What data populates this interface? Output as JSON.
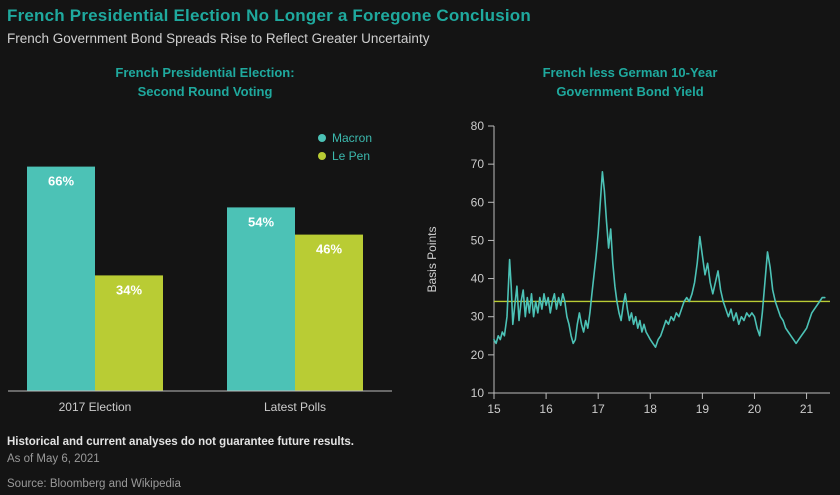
{
  "header": {
    "title": "French Presidential Election No Longer a Foregone Conclusion",
    "subtitle": "French Government Bond Spreads Rise to Reflect Greater Uncertainty"
  },
  "footer": {
    "disclaimer": "Historical and current analyses do not guarantee future results.",
    "as_of": "As of May 6, 2021",
    "source": "Source: Bloomberg and Wikipedia"
  },
  "colors": {
    "background": "#141414",
    "title_teal": "#1fa99e",
    "teal": "#4cc2b6",
    "green": "#b9cc34",
    "axis_line": "#bdbdbd",
    "text_muted": "#cccccc",
    "value_label": "#ffffff"
  },
  "chart_data": [
    {
      "type": "bar",
      "title_lines": [
        "French Presidential Election:",
        "Second Round Voting"
      ],
      "categories": [
        "2017 Election",
        "Latest Polls"
      ],
      "series": [
        {
          "name": "Macron",
          "color_key": "teal",
          "values": [
            66,
            54
          ]
        },
        {
          "name": "Le Pen",
          "color_key": "green",
          "values": [
            34,
            46
          ]
        }
      ],
      "value_labels": [
        [
          "66%",
          "34%"
        ],
        [
          "54%",
          "46%"
        ]
      ],
      "ylim": [
        0,
        100
      ],
      "legend_position": "upper-right",
      "grid": false
    },
    {
      "type": "line",
      "title_lines": [
        "French less German 10-Year",
        "Government Bond Yield"
      ],
      "ylabel": "Basis Points",
      "ylim": [
        10,
        80
      ],
      "yticks": [
        10,
        20,
        30,
        40,
        50,
        60,
        70,
        80
      ],
      "xlim": [
        15,
        21.45
      ],
      "xticks": [
        15,
        16,
        17,
        18,
        19,
        20,
        21
      ],
      "grid": false,
      "reference_line": {
        "value": 34,
        "color_key": "green",
        "meaning": "current spread level"
      },
      "series": [
        {
          "name": "French less German 10-Year Government Bond Yield",
          "color_key": "teal",
          "points": [
            [
              15.0,
              24
            ],
            [
              15.04,
              23
            ],
            [
              15.08,
              25
            ],
            [
              15.12,
              24
            ],
            [
              15.16,
              26
            ],
            [
              15.2,
              25
            ],
            [
              15.25,
              30
            ],
            [
              15.3,
              45
            ],
            [
              15.33,
              38
            ],
            [
              15.36,
              28
            ],
            [
              15.4,
              33
            ],
            [
              15.44,
              38
            ],
            [
              15.48,
              29
            ],
            [
              15.52,
              34
            ],
            [
              15.56,
              37
            ],
            [
              15.6,
              30
            ],
            [
              15.64,
              35
            ],
            [
              15.68,
              31
            ],
            [
              15.72,
              36
            ],
            [
              15.76,
              30
            ],
            [
              15.8,
              34
            ],
            [
              15.84,
              31
            ],
            [
              15.88,
              35
            ],
            [
              15.92,
              32
            ],
            [
              15.96,
              36
            ],
            [
              16.0,
              33
            ],
            [
              16.04,
              35
            ],
            [
              16.08,
              31
            ],
            [
              16.12,
              34
            ],
            [
              16.16,
              36
            ],
            [
              16.2,
              32
            ],
            [
              16.24,
              35
            ],
            [
              16.28,
              33
            ],
            [
              16.32,
              36
            ],
            [
              16.36,
              34
            ],
            [
              16.4,
              30
            ],
            [
              16.44,
              28
            ],
            [
              16.48,
              25
            ],
            [
              16.52,
              23
            ],
            [
              16.56,
              24
            ],
            [
              16.6,
              28
            ],
            [
              16.64,
              31
            ],
            [
              16.68,
              28
            ],
            [
              16.72,
              26
            ],
            [
              16.76,
              29
            ],
            [
              16.8,
              27
            ],
            [
              16.84,
              31
            ],
            [
              16.88,
              36
            ],
            [
              16.92,
              41
            ],
            [
              16.96,
              46
            ],
            [
              17.0,
              52
            ],
            [
              17.04,
              60
            ],
            [
              17.08,
              68
            ],
            [
              17.12,
              63
            ],
            [
              17.16,
              55
            ],
            [
              17.2,
              48
            ],
            [
              17.24,
              53
            ],
            [
              17.28,
              44
            ],
            [
              17.32,
              38
            ],
            [
              17.36,
              34
            ],
            [
              17.4,
              31
            ],
            [
              17.44,
              29
            ],
            [
              17.48,
              33
            ],
            [
              17.52,
              36
            ],
            [
              17.56,
              32
            ],
            [
              17.6,
              29
            ],
            [
              17.64,
              31
            ],
            [
              17.68,
              28
            ],
            [
              17.72,
              30
            ],
            [
              17.76,
              27
            ],
            [
              17.8,
              29
            ],
            [
              17.84,
              26
            ],
            [
              17.88,
              28
            ],
            [
              17.92,
              26
            ],
            [
              17.96,
              25
            ],
            [
              18.0,
              24
            ],
            [
              18.05,
              23
            ],
            [
              18.1,
              22
            ],
            [
              18.15,
              24
            ],
            [
              18.2,
              25
            ],
            [
              18.25,
              27
            ],
            [
              18.3,
              29
            ],
            [
              18.35,
              28
            ],
            [
              18.4,
              30
            ],
            [
              18.45,
              29
            ],
            [
              18.5,
              31
            ],
            [
              18.55,
              30
            ],
            [
              18.6,
              32
            ],
            [
              18.65,
              34
            ],
            [
              18.7,
              35
            ],
            [
              18.75,
              34
            ],
            [
              18.8,
              36
            ],
            [
              18.85,
              39
            ],
            [
              18.9,
              44
            ],
            [
              18.95,
              51
            ],
            [
              19.0,
              46
            ],
            [
              19.05,
              41
            ],
            [
              19.1,
              44
            ],
            [
              19.15,
              39
            ],
            [
              19.2,
              36
            ],
            [
              19.25,
              39
            ],
            [
              19.3,
              42
            ],
            [
              19.35,
              37
            ],
            [
              19.4,
              34
            ],
            [
              19.45,
              32
            ],
            [
              19.5,
              30
            ],
            [
              19.55,
              32
            ],
            [
              19.6,
              29
            ],
            [
              19.65,
              31
            ],
            [
              19.7,
              28
            ],
            [
              19.75,
              30
            ],
            [
              19.8,
              29
            ],
            [
              19.85,
              31
            ],
            [
              19.9,
              30
            ],
            [
              19.95,
              31
            ],
            [
              20.0,
              30
            ],
            [
              20.05,
              27
            ],
            [
              20.1,
              25
            ],
            [
              20.15,
              31
            ],
            [
              20.2,
              39
            ],
            [
              20.25,
              47
            ],
            [
              20.3,
              43
            ],
            [
              20.35,
              37
            ],
            [
              20.4,
              34
            ],
            [
              20.45,
              32
            ],
            [
              20.5,
              30
            ],
            [
              20.55,
              29
            ],
            [
              20.6,
              27
            ],
            [
              20.65,
              26
            ],
            [
              20.7,
              25
            ],
            [
              20.75,
              24
            ],
            [
              20.8,
              23
            ],
            [
              20.85,
              24
            ],
            [
              20.9,
              25
            ],
            [
              20.95,
              26
            ],
            [
              21.0,
              27
            ],
            [
              21.05,
              29
            ],
            [
              21.1,
              31
            ],
            [
              21.15,
              32
            ],
            [
              21.2,
              33
            ],
            [
              21.25,
              34
            ],
            [
              21.3,
              35
            ],
            [
              21.35,
              35
            ]
          ]
        }
      ]
    }
  ]
}
